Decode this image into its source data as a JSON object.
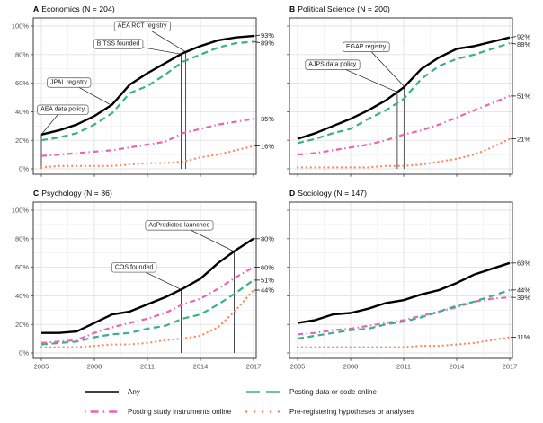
{
  "colors": {
    "any": "#000000",
    "data_code": "#3cb08a",
    "instruments": "#e765b5",
    "prereg": "#fb8a62",
    "grid_major": "#e2e2e2",
    "grid_minor": "#efefef",
    "panel_border": "#3a3a3a",
    "axis_text": "#4d4d4d",
    "event_line": "#000000",
    "annotation_border": "#6e6e6e",
    "annotation_text": "#1a1a1a"
  },
  "axis": {
    "x_tick_years": [
      2005,
      2008,
      2011,
      2014,
      2017
    ],
    "x_tick_labels": [
      "2005",
      "2008",
      "2011",
      "2014",
      "2017"
    ],
    "x_minor_years": [
      2006.5,
      2009.5,
      2012.5,
      2015.5
    ],
    "y_tick_values": [
      0,
      20,
      40,
      60,
      80,
      100
    ],
    "y_tick_labels": [
      "0%",
      "20%",
      "40%",
      "60%",
      "80%",
      "100%"
    ],
    "y_minor_values": [
      10,
      30,
      50,
      70,
      90
    ]
  },
  "legend": [
    {
      "key": "any",
      "label": "Any"
    },
    {
      "key": "data_code",
      "label": "Posting data or code online"
    },
    {
      "key": "instruments",
      "label": "Posting study instruments online"
    },
    {
      "key": "prereg",
      "label": "Pre-registering hypotheses or analyses"
    }
  ],
  "chart_data": [
    {
      "type": "line",
      "title_letter": "A",
      "title_rest": "Economics (N = 204)",
      "x": [
        2005,
        2006,
        2007,
        2008,
        2009,
        2010,
        2011,
        2012,
        2013,
        2014,
        2015,
        2016,
        2017
      ],
      "ylim": [
        0,
        100
      ],
      "series": [
        {
          "key": "any",
          "name": "Any",
          "values": [
            24,
            27,
            31,
            37,
            45,
            59,
            67,
            74,
            81,
            86,
            90,
            92,
            93
          ],
          "end_label": "93%"
        },
        {
          "key": "data_code",
          "name": "Posting data or code online",
          "values": [
            20,
            22,
            25,
            31,
            39,
            53,
            58,
            66,
            75,
            80,
            85,
            88,
            89
          ],
          "end_label": "89%"
        },
        {
          "key": "instruments",
          "name": "Posting study instruments online",
          "values": [
            9,
            10,
            11,
            12,
            13,
            15,
            17,
            19,
            25,
            28,
            31,
            33,
            35
          ],
          "end_label": "35%"
        },
        {
          "key": "prereg",
          "name": "Pre-registering hypotheses or analyses",
          "values": [
            1,
            2,
            2,
            2,
            2,
            3,
            4,
            4,
            5,
            8,
            10,
            13,
            16
          ],
          "end_label": "16%"
        }
      ],
      "events": [
        {
          "label": "AEA data policy",
          "year": 2005.0,
          "box_year": 2006.2,
          "box_pct": 42
        },
        {
          "label": "JPAL registry",
          "year": 2008.95,
          "box_year": 2006.55,
          "box_pct": 61
        },
        {
          "label": "BITSS founded",
          "year": 2012.9,
          "box_year": 2009.35,
          "box_pct": 88
        },
        {
          "label": "AEA RCT registry",
          "year": 2013.17,
          "box_year": 2010.7,
          "box_pct": 100.5
        }
      ]
    },
    {
      "type": "line",
      "title_letter": "B",
      "title_rest": "Political Science (N = 200)",
      "x": [
        2005,
        2006,
        2007,
        2008,
        2009,
        2010,
        2011,
        2012,
        2013,
        2014,
        2015,
        2016,
        2017
      ],
      "ylim": [
        0,
        100
      ],
      "series": [
        {
          "key": "any",
          "name": "Any",
          "values": [
            21,
            25,
            30,
            35,
            41,
            48,
            57,
            70,
            78,
            84,
            86,
            89,
            92
          ],
          "end_label": "92%"
        },
        {
          "key": "data_code",
          "name": "Posting data or code online",
          "values": [
            18,
            21,
            25,
            28,
            35,
            41,
            49,
            63,
            72,
            77,
            80,
            84,
            88
          ],
          "end_label": "88%"
        },
        {
          "key": "instruments",
          "name": "Posting study instruments online",
          "values": [
            10,
            11,
            13,
            15,
            17,
            20,
            24,
            27,
            31,
            36,
            41,
            46,
            51
          ],
          "end_label": "51%"
        },
        {
          "key": "prereg",
          "name": "Pre-registering hypotheses or analyses",
          "values": [
            1,
            1,
            1,
            1,
            1,
            2,
            2,
            3,
            5,
            7,
            10,
            15,
            21
          ],
          "end_label": "21%"
        }
      ],
      "events": [
        {
          "label": "AJPS data policy",
          "year": 2010.64,
          "box_year": 2006.97,
          "box_pct": 73.5
        },
        {
          "label": "EGAP registry",
          "year": 2011.04,
          "box_year": 2008.87,
          "box_pct": 86
        }
      ]
    },
    {
      "type": "line",
      "title_letter": "C",
      "title_rest": "Psychology (N = 86)",
      "x": [
        2005,
        2006,
        2007,
        2008,
        2009,
        2010,
        2011,
        2012,
        2013,
        2014,
        2015,
        2016,
        2017
      ],
      "ylim": [
        0,
        100
      ],
      "series": [
        {
          "key": "any",
          "name": "Any",
          "values": [
            14,
            14,
            15,
            21,
            27,
            29,
            34,
            39,
            45,
            52,
            63,
            72,
            80
          ],
          "end_label": "80%"
        },
        {
          "key": "instruments",
          "name": "Posting study instruments online",
          "values": [
            7,
            8,
            9,
            14,
            18,
            21,
            24,
            28,
            34,
            38,
            45,
            53,
            60
          ],
          "end_label": "60%"
        },
        {
          "key": "data_code",
          "name": "Posting data or code online",
          "values": [
            6,
            7,
            8,
            11,
            13,
            14,
            17,
            19,
            24,
            27,
            34,
            42,
            51
          ],
          "end_label": "51%"
        },
        {
          "key": "prereg",
          "name": "Pre-registering hypotheses or analyses",
          "values": [
            4,
            4,
            4,
            5,
            6,
            6,
            7,
            9,
            10,
            12,
            18,
            30,
            44
          ],
          "end_label": "44%"
        }
      ],
      "events": [
        {
          "label": "COS founded",
          "year": 2012.9,
          "box_year": 2010.24,
          "box_pct": 60.5
        },
        {
          "label": "AsPredicted launched",
          "year": 2015.9,
          "box_year": 2012.8,
          "box_pct": 90
        }
      ]
    },
    {
      "type": "line",
      "title_letter": "D",
      "title_rest": "Sociology (N = 147)",
      "x": [
        2005,
        2006,
        2007,
        2008,
        2009,
        2010,
        2011,
        2012,
        2013,
        2014,
        2015,
        2016,
        2017
      ],
      "ylim": [
        0,
        100
      ],
      "series": [
        {
          "key": "any",
          "name": "Any",
          "values": [
            21,
            23,
            27,
            28,
            31,
            35,
            37,
            41,
            44,
            49,
            55,
            59,
            63
          ],
          "end_label": "63%"
        },
        {
          "key": "data_code",
          "name": "Posting data or code online",
          "values": [
            10,
            12,
            14,
            16,
            17,
            20,
            22,
            25,
            29,
            33,
            36,
            40,
            44
          ],
          "end_label": "44%"
        },
        {
          "key": "instruments",
          "name": "Posting study instruments online",
          "values": [
            13,
            14,
            16,
            17,
            19,
            21,
            23,
            26,
            29,
            32,
            36,
            38,
            39
          ],
          "end_label": "39%"
        },
        {
          "key": "prereg",
          "name": "Pre-registering hypotheses or analyses",
          "values": [
            4,
            4,
            4,
            4,
            4,
            4,
            4,
            5,
            5,
            6,
            7,
            9,
            11
          ],
          "end_label": "11%"
        }
      ],
      "events": []
    }
  ]
}
